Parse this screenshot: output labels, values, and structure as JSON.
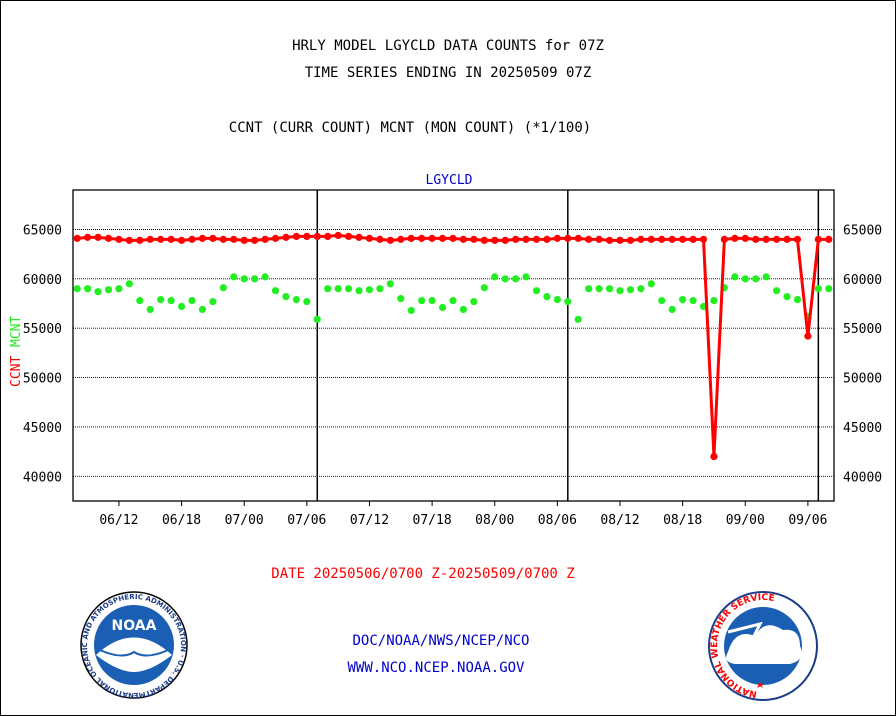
{
  "header": {
    "title_line1": "HRLY MODEL LGYCLD DATA COUNTS for 07Z",
    "title_line2": "TIME SERIES ENDING IN 20250509 07Z",
    "subtitle": "CCNT (CURR COUNT) MCNT (MON COUNT) (*1/100)"
  },
  "footer": {
    "date_range": "DATE 20250506/0700 Z-20250509/0700 Z",
    "org_path": "DOC/NOAA/NWS/NCEP/NCO",
    "website": "WWW.NCO.NCEP.NOAA.GOV"
  },
  "logos": {
    "noaa_text": "NOAA",
    "noaa_ring_text": "NATIONAL OCEANIC AND ATMOSPHERIC ADMINISTRATION · U.S. DEPARTMENT OF COMMERCE",
    "nws_ring_text": "NATIONAL WEATHER SERVICE"
  },
  "colors": {
    "ccnt": "#ff0000",
    "mcnt": "#22ee22",
    "label_blue": "#0000cc",
    "footer_red": "#ff0000"
  },
  "chart_data": {
    "type": "line",
    "title": "LGYCLD",
    "ylabel_ccnt": "CCNT",
    "ylabel_mcnt": "MCNT",
    "ylim": [
      37500,
      69000
    ],
    "xlim": [
      -0.4,
      72.5
    ],
    "yticks": [
      40000,
      45000,
      50000,
      55000,
      60000,
      65000
    ],
    "ytick_labels": [
      "40000",
      "45000",
      "50000",
      "55000",
      "60000",
      "65000"
    ],
    "xticks": [
      {
        "x": 4,
        "label": "06/12"
      },
      {
        "x": 10,
        "label": "06/18"
      },
      {
        "x": 16,
        "label": "07/00"
      },
      {
        "x": 22,
        "label": "07/06"
      },
      {
        "x": 28,
        "label": "07/12"
      },
      {
        "x": 34,
        "label": "07/18"
      },
      {
        "x": 40,
        "label": "08/00"
      },
      {
        "x": 46,
        "label": "08/06"
      },
      {
        "x": 52,
        "label": "08/12"
      },
      {
        "x": 58,
        "label": "08/18"
      },
      {
        "x": 64,
        "label": "09/00"
      },
      {
        "x": 70,
        "label": "09/06"
      }
    ],
    "day_markers": [
      23,
      47,
      71
    ],
    "grid": true,
    "series": [
      {
        "name": "CCNT",
        "values": [
          64100,
          64200,
          64200,
          64100,
          64000,
          63900,
          63900,
          64000,
          64000,
          64000,
          63900,
          64000,
          64100,
          64100,
          64000,
          64000,
          63900,
          63900,
          64000,
          64100,
          64200,
          64300,
          64300,
          64300,
          64300,
          64400,
          64300,
          64200,
          64100,
          64000,
          63900,
          64000,
          64100,
          64100,
          64100,
          64100,
          64100,
          64000,
          64000,
          63900,
          63900,
          63900,
          64000,
          64000,
          64000,
          64000,
          64100,
          64100,
          64100,
          64000,
          64000,
          63900,
          63900,
          63900,
          64000,
          64000,
          64000,
          64000,
          64000,
          64000,
          64000,
          42000,
          64000,
          64100,
          64100,
          64000,
          64000,
          64000,
          64000,
          64000,
          54200,
          64000,
          64000
        ]
      },
      {
        "name": "MCNT",
        "values": [
          59000,
          59000,
          58700,
          58900,
          59000,
          59500,
          57800,
          56900,
          57900,
          57800,
          57200,
          57800,
          56900,
          57700,
          59100,
          60200,
          60000,
          60000,
          60200,
          58800,
          58200,
          57900,
          57700,
          55900,
          59000,
          59000,
          59000,
          58800,
          58900,
          59000,
          59500,
          58000,
          56800,
          57800,
          57800,
          57100,
          57800,
          56900,
          57700,
          59100,
          60200,
          60000,
          60000,
          60200,
          58800,
          58200,
          57900,
          57700,
          55900,
          59000,
          59000,
          59000,
          58800,
          58900,
          59000,
          59500,
          57800,
          56900,
          57900,
          57800,
          57200,
          57800,
          59100,
          60200,
          60000,
          60000,
          60200,
          58800,
          58200,
          57900,
          56200,
          59000,
          59000
        ]
      }
    ]
  }
}
